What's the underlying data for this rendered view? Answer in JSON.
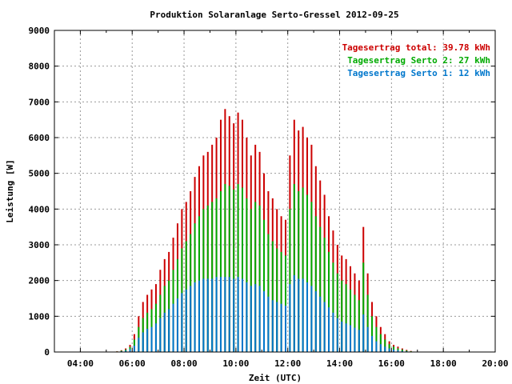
{
  "chart_data": {
    "type": "bar",
    "title": "Produktion Solaranlage Serto-Gressel 2012-09-25",
    "xlabel": "Zeit (UTC)",
    "ylabel": "Leistung [W]",
    "ylim": [
      0,
      9000
    ],
    "yticks": [
      "0",
      "1000",
      "2000",
      "3000",
      "4000",
      "5000",
      "6000",
      "7000",
      "8000",
      "9000"
    ],
    "xlim_hours": [
      3,
      20
    ],
    "xticks": [
      {
        "hour": 4,
        "label": "04:00"
      },
      {
        "hour": 6,
        "label": "06:00"
      },
      {
        "hour": 8,
        "label": "08:00"
      },
      {
        "hour": 10,
        "label": "10:00"
      },
      {
        "hour": 12,
        "label": "12:00"
      },
      {
        "hour": 14,
        "label": "14:00"
      },
      {
        "hour": 16,
        "label": "16:00"
      },
      {
        "hour": 18,
        "label": "18:00"
      },
      {
        "hour": 20,
        "label": "20:00"
      }
    ],
    "grid": true,
    "legend_position": "top-right",
    "legend": [
      {
        "text": "Tagesertrag total: 39.78 kWh",
        "color": "#cc0000"
      },
      {
        "text": "Tagesertrag Serto 2: 27 kWh",
        "color": "#00aa00"
      },
      {
        "text": "Tagesertrag Serto 1: 12 kWh",
        "color": "#0077cc"
      }
    ],
    "series": [
      {
        "key": "total",
        "color": "#cc0000",
        "x": [
          "05:25",
          "05:35",
          "05:45",
          "05:55",
          "06:05",
          "06:15",
          "06:25",
          "06:35",
          "06:45",
          "06:55",
          "07:05",
          "07:15",
          "07:25",
          "07:35",
          "07:45",
          "07:55",
          "08:05",
          "08:15",
          "08:25",
          "08:35",
          "08:45",
          "08:55",
          "09:05",
          "09:15",
          "09:25",
          "09:35",
          "09:45",
          "09:55",
          "10:05",
          "10:15",
          "10:25",
          "10:35",
          "10:45",
          "10:55",
          "11:05",
          "11:15",
          "11:25",
          "11:35",
          "11:45",
          "11:55",
          "12:05",
          "12:15",
          "12:25",
          "12:35",
          "12:45",
          "12:55",
          "13:05",
          "13:15",
          "13:25",
          "13:35",
          "13:45",
          "13:55",
          "14:05",
          "14:15",
          "14:25",
          "14:35",
          "14:45",
          "14:55",
          "15:05",
          "15:15",
          "15:25",
          "15:35",
          "15:45",
          "15:55",
          "16:05",
          "16:15",
          "16:25",
          "16:35",
          "16:45",
          "16:55"
        ],
        "values": [
          20,
          50,
          100,
          200,
          500,
          1000,
          1400,
          1600,
          1750,
          1900,
          2300,
          2600,
          2800,
          3200,
          3600,
          4000,
          4200,
          4500,
          4900,
          5200,
          5500,
          5600,
          5800,
          6000,
          6500,
          6800,
          6600,
          6400,
          6700,
          6500,
          6000,
          5500,
          5800,
          5600,
          5000,
          4500,
          4300,
          4000,
          3800,
          3700,
          5500,
          6500,
          6200,
          6300,
          6000,
          5800,
          5200,
          4800,
          4400,
          3800,
          3400,
          3000,
          2700,
          2600,
          2400,
          2200,
          2000,
          3500,
          2200,
          1400,
          1000,
          700,
          500,
          300,
          200,
          150,
          100,
          60,
          30,
          10
        ]
      },
      {
        "key": "serto2",
        "color": "#00aa00",
        "x": [
          "05:25",
          "05:35",
          "05:45",
          "05:55",
          "06:05",
          "06:15",
          "06:25",
          "06:35",
          "06:45",
          "06:55",
          "07:05",
          "07:15",
          "07:25",
          "07:35",
          "07:45",
          "07:55",
          "08:05",
          "08:15",
          "08:25",
          "08:35",
          "08:45",
          "08:55",
          "09:05",
          "09:15",
          "09:25",
          "09:35",
          "09:45",
          "09:55",
          "10:05",
          "10:15",
          "10:25",
          "10:35",
          "10:45",
          "10:55",
          "11:05",
          "11:15",
          "11:25",
          "11:35",
          "11:45",
          "11:55",
          "12:05",
          "12:15",
          "12:25",
          "12:35",
          "12:45",
          "12:55",
          "13:05",
          "13:15",
          "13:25",
          "13:35",
          "13:45",
          "13:55",
          "14:05",
          "14:15",
          "14:25",
          "14:35",
          "14:45",
          "14:55",
          "15:05",
          "15:15",
          "15:25",
          "15:35",
          "15:45",
          "15:55",
          "16:05",
          "16:15",
          "16:25",
          "16:35",
          "16:45",
          "16:55"
        ],
        "values": [
          15,
          35,
          70,
          140,
          350,
          700,
          950,
          1100,
          1200,
          1350,
          1600,
          1850,
          2000,
          2300,
          2600,
          2900,
          3100,
          3300,
          3600,
          3800,
          4000,
          4100,
          4200,
          4300,
          4500,
          4700,
          4650,
          4550,
          4700,
          4600,
          4300,
          4000,
          4200,
          4100,
          3700,
          3300,
          3100,
          2900,
          2800,
          2700,
          4000,
          4700,
          4500,
          4600,
          4400,
          4200,
          3800,
          3500,
          3200,
          2800,
          2500,
          2200,
          2000,
          1900,
          1750,
          1600,
          1450,
          2500,
          1600,
          1000,
          700,
          500,
          350,
          220,
          150,
          100,
          70,
          40,
          20,
          8
        ]
      },
      {
        "key": "serto1",
        "color": "#0077cc",
        "x": [
          "05:25",
          "05:35",
          "05:45",
          "05:55",
          "06:05",
          "06:15",
          "06:25",
          "06:35",
          "06:45",
          "06:55",
          "07:05",
          "07:15",
          "07:25",
          "07:35",
          "07:45",
          "07:55",
          "08:05",
          "08:15",
          "08:25",
          "08:35",
          "08:45",
          "08:55",
          "09:05",
          "09:15",
          "09:25",
          "09:35",
          "09:45",
          "09:55",
          "10:05",
          "10:15",
          "10:25",
          "10:35",
          "10:45",
          "10:55",
          "11:05",
          "11:15",
          "11:25",
          "11:35",
          "11:45",
          "11:55",
          "12:05",
          "12:15",
          "12:25",
          "12:35",
          "12:45",
          "12:55",
          "13:05",
          "13:15",
          "13:25",
          "13:35",
          "13:45",
          "13:55",
          "14:05",
          "14:15",
          "14:25",
          "14:35",
          "14:45",
          "14:55",
          "15:05",
          "15:15",
          "15:25",
          "15:35",
          "15:45",
          "15:55",
          "16:05",
          "16:15",
          "16:25",
          "16:35",
          "16:45",
          "16:55"
        ],
        "values": [
          8,
          20,
          40,
          80,
          180,
          400,
          550,
          650,
          700,
          800,
          950,
          1100,
          1200,
          1350,
          1500,
          1650,
          1750,
          1850,
          1950,
          2000,
          2050,
          2050,
          2050,
          2100,
          2100,
          2100,
          2100,
          2050,
          2100,
          2050,
          1950,
          1850,
          1900,
          1850,
          1700,
          1550,
          1450,
          1400,
          1350,
          1300,
          1900,
          2150,
          2050,
          2050,
          1950,
          1850,
          1700,
          1550,
          1400,
          1250,
          1100,
          950,
          850,
          800,
          750,
          680,
          620,
          1050,
          700,
          450,
          300,
          220,
          150,
          100,
          70,
          50,
          30,
          20,
          10,
          4
        ]
      }
    ]
  }
}
